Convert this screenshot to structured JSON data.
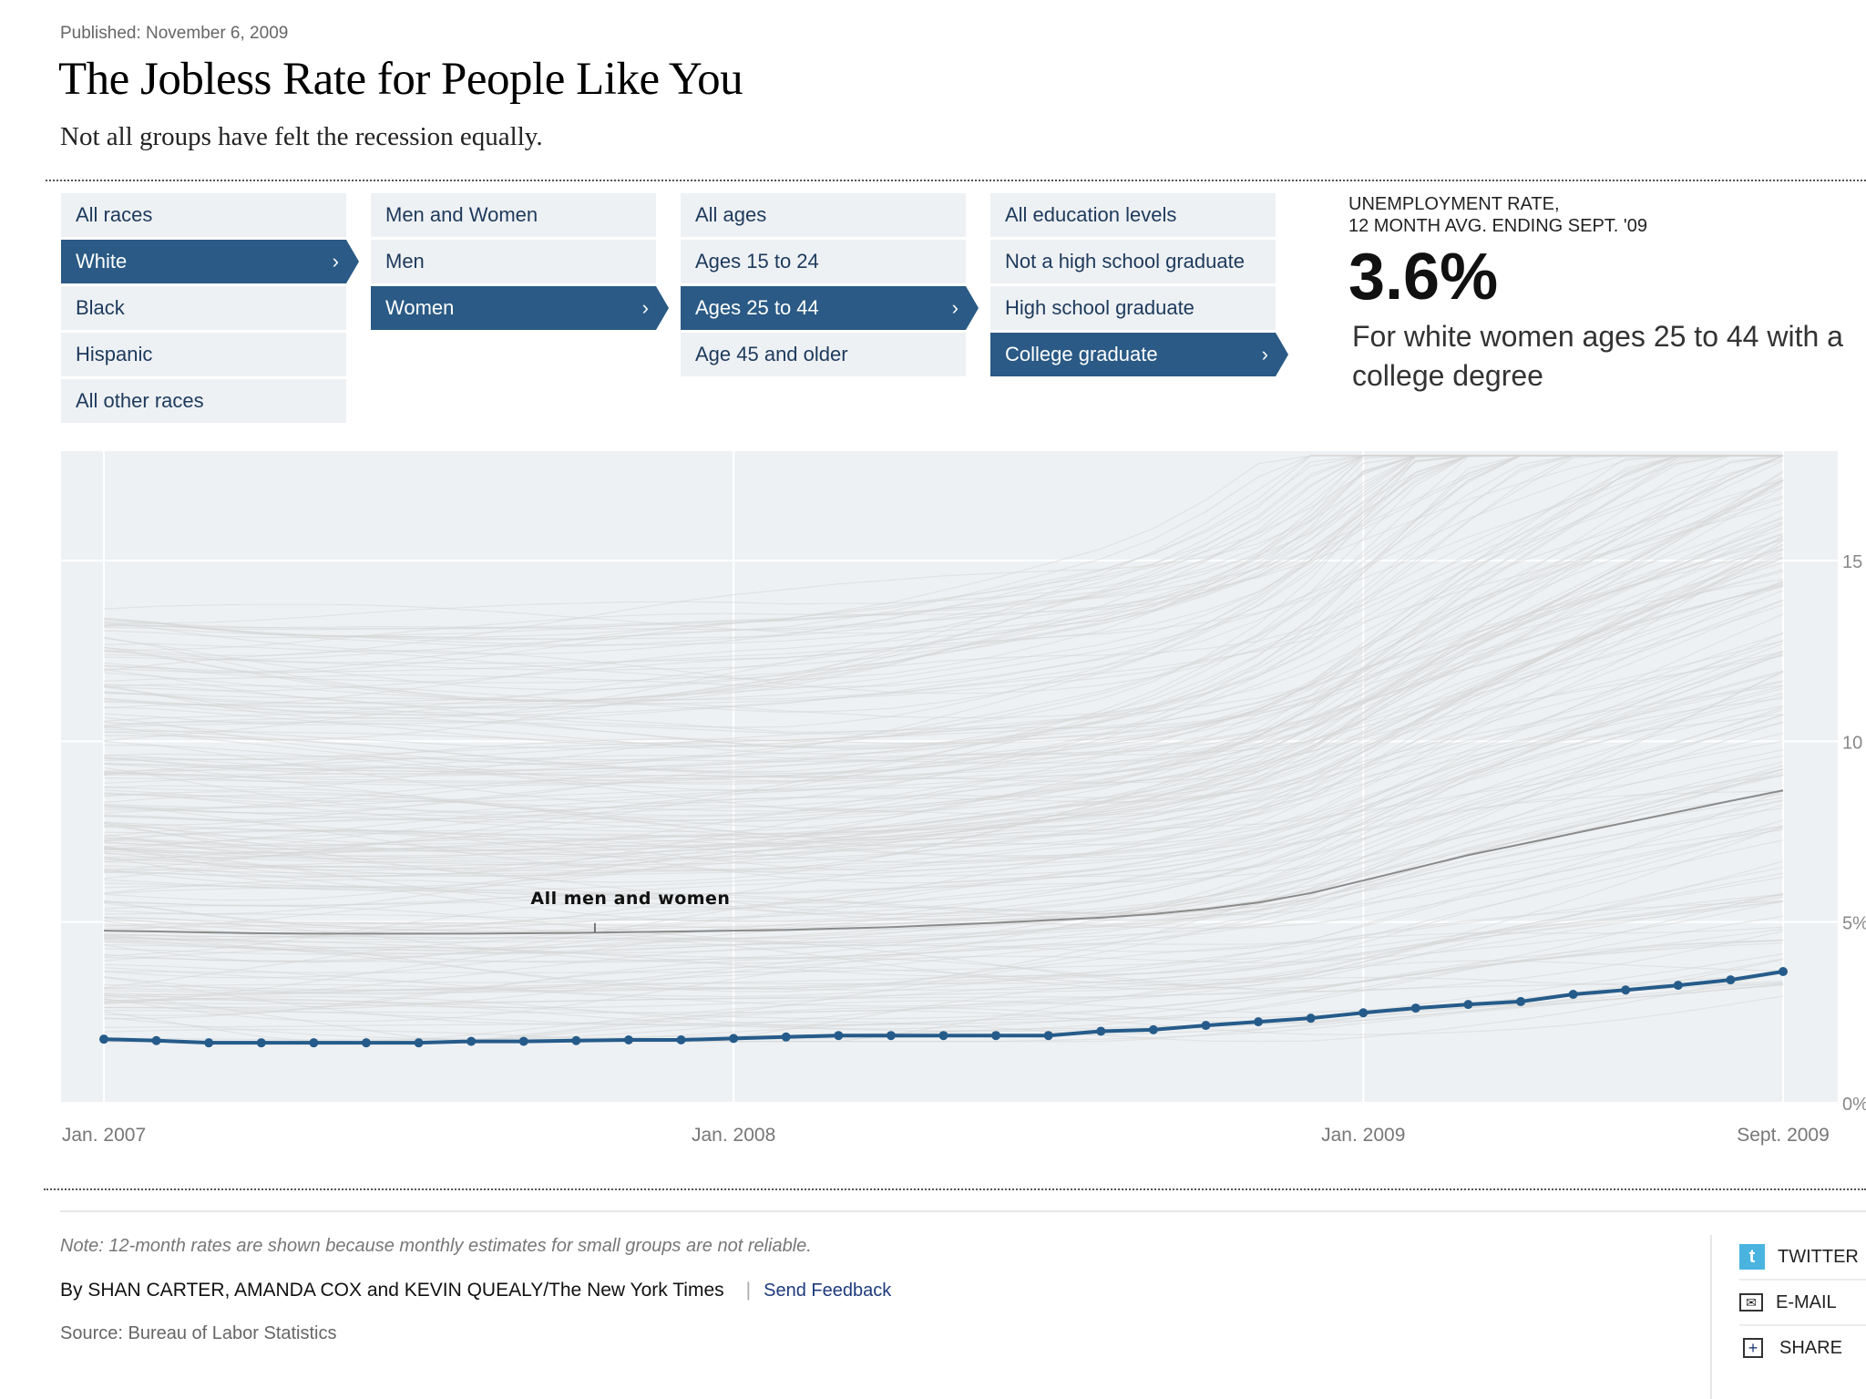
{
  "header": {
    "published": "Published: November 6, 2009",
    "title": "The Jobless Rate for People Like You",
    "subtitle": "Not all groups have felt the recession equally."
  },
  "filters": [
    {
      "name": "race",
      "items": [
        "All races",
        "White",
        "Black",
        "Hispanic",
        "All other races"
      ],
      "selected": 1
    },
    {
      "name": "sex",
      "items": [
        "Men and Women",
        "Men",
        "Women"
      ],
      "selected": 2
    },
    {
      "name": "age",
      "items": [
        "All ages",
        "Ages 15 to 24",
        "Ages 25 to 44",
        "Age 45 and older"
      ],
      "selected": 2
    },
    {
      "name": "education",
      "items": [
        "All education levels",
        "Not a high school graduate",
        "High school graduate",
        "College graduate"
      ],
      "selected": 3
    }
  ],
  "chevron_glyph": "›",
  "result": {
    "label_line1": "UNEMPLOYMENT RATE,",
    "label_line2": "12 MONTH AVG. ENDING SEPT. '09",
    "value": "3.6%",
    "description_line1": "For white women ages 25 to 44 with a",
    "description_line2": "college degree"
  },
  "colors": {
    "accent": "#2a5a85",
    "highlight_line": "#255b8a",
    "reference_line": "#8a8a8a",
    "background_lines": "#d6d6d6",
    "panel": "#eef1f4"
  },
  "chart_data": {
    "type": "line",
    "title": "",
    "xlabel": "",
    "ylabel": "Unemployment rate",
    "x_start": "Jan. 2007",
    "x_end": "Sept. 2009",
    "months": 33,
    "x_ticks": [
      {
        "index": 0,
        "label": "Jan. 2007"
      },
      {
        "index": 12,
        "label": "Jan. 2008"
      },
      {
        "index": 24,
        "label": "Jan. 2009"
      },
      {
        "index": 32,
        "label": "Sept. 2009"
      }
    ],
    "y_ticks": [
      {
        "value": 0,
        "label": "0%"
      },
      {
        "value": 5,
        "label": "5%"
      },
      {
        "value": 10,
        "label": "10"
      },
      {
        "value": 15,
        "label": "15"
      }
    ],
    "ylim": [
      0,
      18
    ],
    "grid": true,
    "y_axis_side": "right",
    "series": [
      {
        "name": "White women ages 25 to 44, college graduate",
        "highlighted": true,
        "markers": true,
        "values": [
          1.76,
          1.72,
          1.66,
          1.66,
          1.66,
          1.66,
          1.66,
          1.7,
          1.7,
          1.72,
          1.74,
          1.74,
          1.78,
          1.82,
          1.86,
          1.86,
          1.86,
          1.86,
          1.86,
          1.98,
          2.02,
          2.14,
          2.24,
          2.34,
          2.49,
          2.62,
          2.72,
          2.8,
          3.0,
          3.12,
          3.25,
          3.4,
          3.63
        ]
      },
      {
        "name": "All men and women",
        "highlighted": false,
        "markers": false,
        "annotation": "All men and women",
        "annotation_index": 10,
        "values": [
          4.76,
          4.74,
          4.71,
          4.69,
          4.68,
          4.68,
          4.68,
          4.68,
          4.69,
          4.7,
          4.72,
          4.74,
          4.76,
          4.78,
          4.82,
          4.86,
          4.92,
          4.98,
          5.05,
          5.12,
          5.22,
          5.36,
          5.54,
          5.8,
          6.15,
          6.5,
          6.85,
          7.15,
          7.45,
          7.75,
          8.05,
          8.35,
          8.64
        ]
      }
    ],
    "background_series_count": 220
  },
  "footer": {
    "note": "Note: 12-month rates are shown because monthly estimates for small groups are not reliable.",
    "byline": "By SHAN CARTER, AMANDA COX and KEVIN QUEALY/The New York Times",
    "separator": "|",
    "feedback_link": "Send Feedback",
    "source": "Source: Bureau of Labor Statistics"
  },
  "share": [
    {
      "icon": "twitter-icon",
      "glyph": "t",
      "label": "TWITTER"
    },
    {
      "icon": "email-icon",
      "glyph": "✉",
      "label": "E-MAIL"
    },
    {
      "icon": "share-plus-icon",
      "glyph": "+",
      "label": "SHARE"
    }
  ]
}
